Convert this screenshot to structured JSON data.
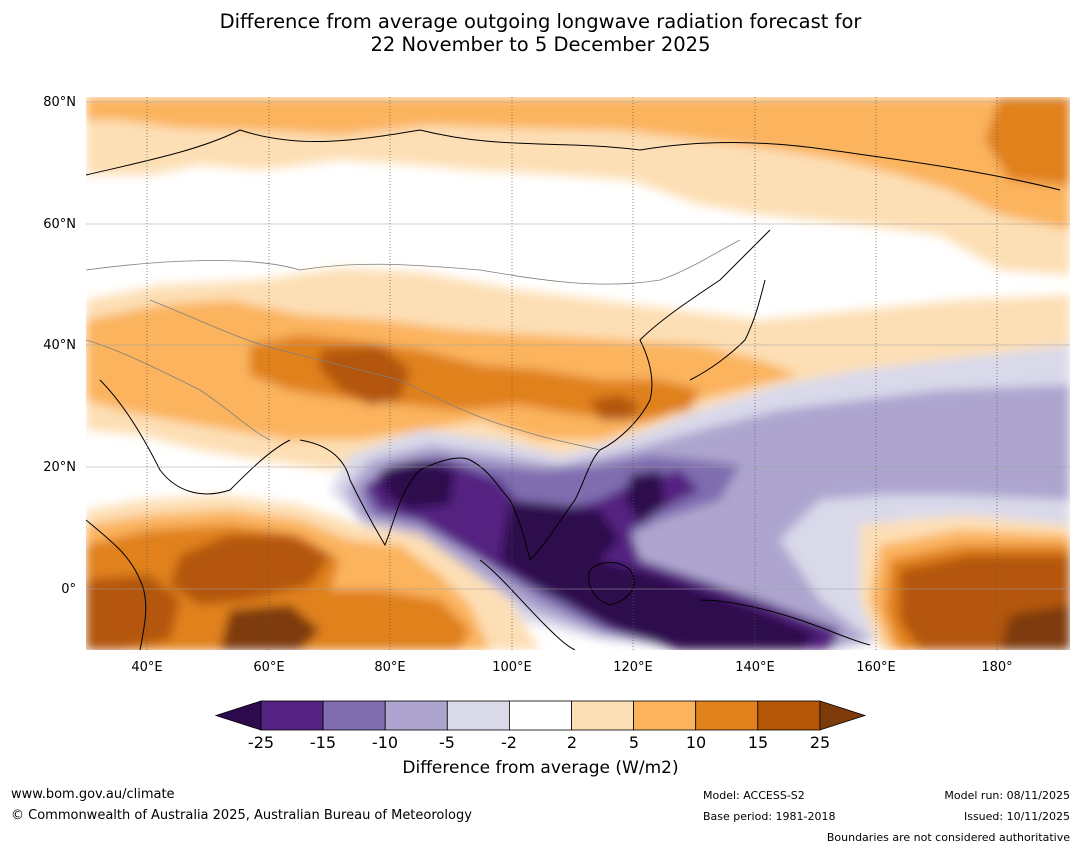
{
  "title_line1": "Difference from average outgoing longwave radiation forecast for",
  "title_line2": "22 November to 5 December 2025",
  "lat_labels": [
    "80°N",
    "60°N",
    "40°N",
    "20°N",
    "0°"
  ],
  "lon_labels": [
    "40°E",
    "60°E",
    "80°E",
    "100°E",
    "120°E",
    "140°E",
    "160°E",
    "180°"
  ],
  "colorbar": {
    "ticks": [
      "-25",
      "-15",
      "-10",
      "-5",
      "-2",
      "2",
      "5",
      "10",
      "15",
      "25"
    ],
    "colors": [
      "#2d0a4e",
      "#542281",
      "#7f6db0",
      "#ada5cf",
      "#d9d9ea",
      "#ffffff",
      "#fddfb5",
      "#fbb35d",
      "#e0811b",
      "#b45707",
      "#7e3b0a"
    ],
    "label": "Difference from average (W/m2)"
  },
  "footer": {
    "website": "www.bom.gov.au/climate",
    "copyright": "© Commonwealth of Australia 2025, Australian Bureau of Meteorology",
    "model": "Model: ACCESS-S2",
    "base_period": "Base period: 1981-2018",
    "model_run": "Model run: 08/11/2025",
    "issued": "Issued: 10/11/2025",
    "disclaimer": "Boundaries are not considered authoritative"
  }
}
